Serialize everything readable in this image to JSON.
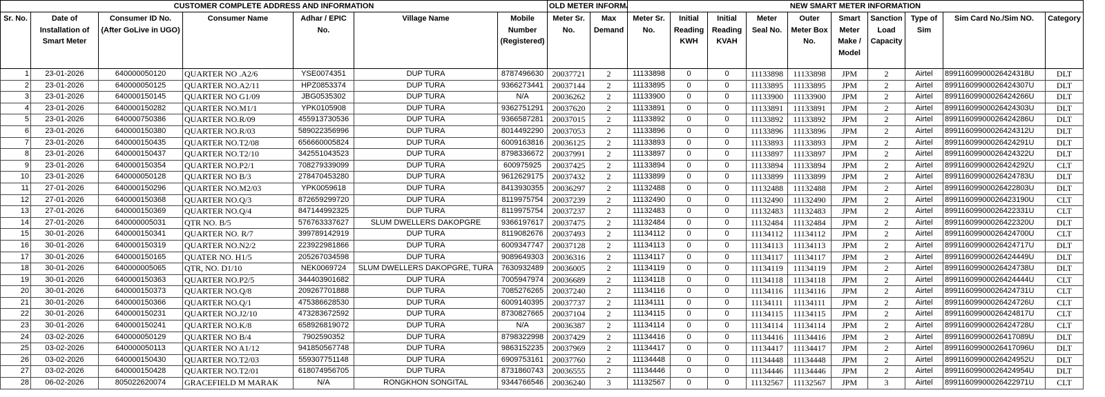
{
  "groups": {
    "customer": "CUSTOMER COMPLETE ADDRESS AND INFORMATION",
    "old_meter": "OLD METER INFORMATION",
    "new_meter": "NEW SMART METER INFORMATION"
  },
  "columns": [
    "Sr. No.",
    "Date of Installation of Smart Meter",
    "Consumer ID No. (After GoLive in UGO)",
    "Consumer Name",
    "Adhar / EPIC No.",
    "Village Name",
    "Mobile Number (Registered)",
    "Meter Sr. No.",
    "Max Demand",
    "Meter Sr. No.",
    "Initial Reading KWH",
    "Initial Reading KVAH",
    "Meter Seal No.",
    "Outer Meter Box No.",
    "Smart Meter Make / Model",
    "Sanction Load Capacity",
    "Type of Sim",
    "Sim Card No./Sim NO.",
    "Category"
  ],
  "rows": [
    [
      "1",
      "23-01-2026",
      "640000050120",
      "QUARTER NO .A2/6",
      "YSE0074351",
      "DUP TURA",
      "8787496630",
      "20037721",
      "2",
      "11133898",
      "0",
      "0",
      "11133898",
      "11133898",
      "JPM",
      "2",
      "Airtel",
      "89911609900026424318U",
      "DLT"
    ],
    [
      "2",
      "23-01-2026",
      "640000050125",
      "QUARTER NO.A2/11",
      "HPZ0853374",
      "DUP TURA",
      "9366273441",
      "20037144",
      "2",
      "11133895",
      "0",
      "0",
      "11133895",
      "11133895",
      "JPM",
      "2",
      "Airtel",
      "89911609900026424307U",
      "DLT"
    ],
    [
      "3",
      "23-01-2026",
      "640000150145",
      "QUARTER NO G1/09",
      "JBG0535302",
      "DUP TURA",
      "N/A",
      "20036262",
      "2",
      "11133900",
      "0",
      "0",
      "11133900",
      "11133900",
      "JPM",
      "2",
      "Airtel",
      "89911609900026424266U",
      "DLT"
    ],
    [
      "4",
      "23-01-2026",
      "640000150282",
      "QUARTER NO.M1/1",
      "YPK0105908",
      "DUP TURA",
      "9362751291",
      "20037620",
      "2",
      "11133891",
      "0",
      "0",
      "11133891",
      "11133891",
      "JPM",
      "2",
      "Airtel",
      "89911609900026424303U",
      "DLT"
    ],
    [
      "5",
      "23-01-2026",
      "640000750386",
      "QUARTER NO.R/09",
      "455913730536",
      "DUP TURA",
      "9366587281",
      "20037015",
      "2",
      "11133892",
      "0",
      "0",
      "11133892",
      "11133892",
      "JPM",
      "2",
      "Airtel",
      "89911609900026424286U",
      "DLT"
    ],
    [
      "6",
      "23-01-2026",
      "640000150380",
      "QUARTER NO.R/03",
      "589022356996",
      "DUP TURA",
      "8014492290",
      "20037053",
      "2",
      "11133896",
      "0",
      "0",
      "11133896",
      "11133896",
      "JPM",
      "2",
      "Airtel",
      "89911609900026424312U",
      "DLT"
    ],
    [
      "7",
      "23-01-2026",
      "640000150435",
      "QUARTER NO.T2/08",
      "656660005824",
      "DUP TURA",
      "6009163816",
      "20036125",
      "2",
      "11133893",
      "0",
      "0",
      "11133893",
      "11133893",
      "JPM",
      "2",
      "Airtel",
      "89911609900026424291U",
      "DLT"
    ],
    [
      "8",
      "23-01-2026",
      "640000150437",
      "QUARTER NO.T2/10",
      "342551043523",
      "DUP TURA",
      "8798336672",
      "20037991",
      "2",
      "11133897",
      "0",
      "0",
      "11133897",
      "11133897",
      "JPM",
      "2",
      "Airtel",
      "89911609900026424322U",
      "DLT"
    ],
    [
      "9",
      "23-01-2026",
      "640000150354",
      "QUARTER NO.P2/1",
      "708279339099",
      "DUP TURA",
      "600975925",
      "20037425",
      "2",
      "11133894",
      "0",
      "0",
      "11133894",
      "11133894",
      "JPM",
      "2",
      "Airtel",
      "89911609900026424292U",
      "CLT"
    ],
    [
      "10",
      "23-01-2026",
      "640000050128",
      "QUARTER NO B/3",
      "278470453280",
      "DUP TURA",
      "9612629175",
      "20037432",
      "2",
      "11133899",
      "0",
      "0",
      "11133899",
      "11133899",
      "JPM",
      "2",
      "Airtel",
      "89911609900026424783U",
      "DLT"
    ],
    [
      "11",
      "27-01-2026",
      "640000150296",
      "QUARTER NO.M2/03",
      "YPK0059618",
      "DUP TURA",
      "8413930355",
      "20036297",
      "2",
      "11132488",
      "0",
      "0",
      "11132488",
      "11132488",
      "JPM",
      "2",
      "Airtel",
      "89911609900026422803U",
      "DLT"
    ],
    [
      "12",
      "27-01-2026",
      "640000150368",
      "QUARTER NO.Q/3",
      "872659299720",
      "DUP TURA",
      "8119975754",
      "20037239",
      "2",
      "11132490",
      "0",
      "0",
      "11132490",
      "11132490",
      "JPM",
      "2",
      "Airtel",
      "89911609900026423190U",
      "CLT"
    ],
    [
      "13",
      "27-01-2026",
      "640000150369",
      "QUARTER NO.Q/4",
      "847144992325",
      "DUP TURA",
      "8119975754",
      "20037237",
      "2",
      "11132483",
      "0",
      "0",
      "11132483",
      "11132483",
      "JPM",
      "2",
      "Airtel",
      "89911609900026422331U",
      "CLT"
    ],
    [
      "14",
      "27-01-2026",
      "640000005031",
      "QTR NO. B/5",
      "576763337627",
      "SLUM DWELLERS DAKOPGRE",
      "9366197617",
      "20037475",
      "2",
      "11132484",
      "0",
      "0",
      "11132484",
      "11132484",
      "JPM",
      "2",
      "Airtel",
      "89911609900026422320U",
      "DLT"
    ],
    [
      "15",
      "30-01-2026",
      "640000150341",
      "QUARTER NO. R/7",
      "399789142919",
      "DUP TURA",
      "8119082676",
      "20037493",
      "2",
      "11134112",
      "0",
      "0",
      "11134112",
      "11134112",
      "JPM",
      "2",
      "Airtel",
      "89911609900026424700U",
      "CLT"
    ],
    [
      "16",
      "30-01-2026",
      "640000150319",
      "QUARTER NO.N2/2",
      "223922981866",
      "DUP TURA",
      "6009347747",
      "20037128",
      "2",
      "11134113",
      "0",
      "0",
      "11134113",
      "11134113",
      "JPM",
      "2",
      "Airtel",
      "89911609900026424717U",
      "DLT"
    ],
    [
      "17",
      "30-01-2026",
      "640000150165",
      "QUATER NO. H1/5",
      "205267034598",
      "DUP TURA",
      "9089649303",
      "20036316",
      "2",
      "11134117",
      "0",
      "0",
      "11134117",
      "11134117",
      "JPM",
      "2",
      "Airtel",
      "89911609900026424449U",
      "DLT"
    ],
    [
      "18",
      "30-01-2026",
      "640000005065",
      "QTR, NO. D1/10",
      "NEK0069724",
      "SLUM DWELLERS DAKOPGRE, TURA",
      "7630932489",
      "20036005",
      "2",
      "11134119",
      "0",
      "0",
      "11134119",
      "11134119",
      "JPM",
      "2",
      "Airtel",
      "89911609900026424738U",
      "DLT"
    ],
    [
      "19",
      "30-01-2026",
      "640000150363",
      "QUARTER NO.P2/5",
      "344403901682",
      "DUP TURA",
      "7005947974",
      "20036689",
      "2",
      "11134118",
      "0",
      "0",
      "11134118",
      "11134118",
      "JPM",
      "2",
      "Airtel",
      "89911609900026424444U",
      "CLT"
    ],
    [
      "20",
      "30-01-2026",
      "640000150373",
      "QUARTER NO.Q/8",
      "209267701888",
      "DUP TURA",
      "7085276265",
      "20037240",
      "2",
      "11134116",
      "0",
      "0",
      "11134116",
      "11134116",
      "JPM",
      "2",
      "Airtel",
      "89911609900026424731U",
      "CLT"
    ],
    [
      "21",
      "30-01-2026",
      "640000150366",
      "QUARTER NO.Q/1",
      "475386628530",
      "DUP TURA",
      "6009140395",
      "20037737",
      "2",
      "11134111",
      "0",
      "0",
      "11134111",
      "11134111",
      "JPM",
      "2",
      "Airtel",
      "89911609900026424726U",
      "CLT"
    ],
    [
      "22",
      "30-01-2026",
      "640000150231",
      "QUARTER NO.J2/10",
      "473283672592",
      "DUP TURA",
      "8730827665",
      "20037104",
      "2",
      "11134115",
      "0",
      "0",
      "11134115",
      "11134115",
      "JPM",
      "2",
      "Airtel",
      "89911609900026424817U",
      "CLT"
    ],
    [
      "23",
      "30-01-2026",
      "640000150241",
      "QUARTER NO.K/8",
      "658926819072",
      "DUP TURA",
      "N/A",
      "20036387",
      "2",
      "11134114",
      "0",
      "0",
      "11134114",
      "11134114",
      "JPM",
      "2",
      "Airtel",
      "89911609900026424728U",
      "CLT"
    ],
    [
      "24",
      "03-02-2026",
      "640000050129",
      "QUARTER NO B/4",
      "7902590352",
      "DUP TURA",
      "8798322998",
      "20037429",
      "2",
      "11134416",
      "0",
      "0",
      "11134416",
      "11134416",
      "JPM",
      "2",
      "Airtel",
      "89911609900026417089U",
      "DLT"
    ],
    [
      "25",
      "03-02-2026",
      "640000050113",
      "QUARTER NO A1/12",
      "941850567748",
      "DUP TURA",
      "9863152235",
      "20037969",
      "2",
      "11134417",
      "0",
      "0",
      "11134417",
      "11134417",
      "JPM",
      "2",
      "Airtel",
      "89911609900026417096U",
      "DLT"
    ],
    [
      "26",
      "03-02-2026",
      "640000150430",
      "QUARTER NO.T2/03",
      "559307751148",
      "DUP TURA",
      "6909753161",
      "20037760",
      "2",
      "11134448",
      "0",
      "0",
      "11134448",
      "11134448",
      "JPM",
      "2",
      "Airtel",
      "89911609900026424952U",
      "DLT"
    ],
    [
      "27",
      "03-02-2026",
      "640000150428",
      "QUARTER NO.T2/01",
      "618074956705",
      "DUP TURA",
      "8731860743",
      "20036555",
      "2",
      "11134446",
      "0",
      "0",
      "11134446",
      "11134446",
      "JPM",
      "2",
      "Airtel",
      "89911609900026424954U",
      "DLT"
    ],
    [
      "28",
      "06-02-2026",
      "805022620074",
      "GRACEFIELD M MARAK",
      "N/A",
      "RONGKHON SONGITAL",
      "9344766546",
      "20036240",
      "3",
      "11132567",
      "0",
      "0",
      "11132567",
      "11132567",
      "JPM",
      "3",
      "Airtel",
      "89911609900026422971U",
      "CLT"
    ]
  ]
}
